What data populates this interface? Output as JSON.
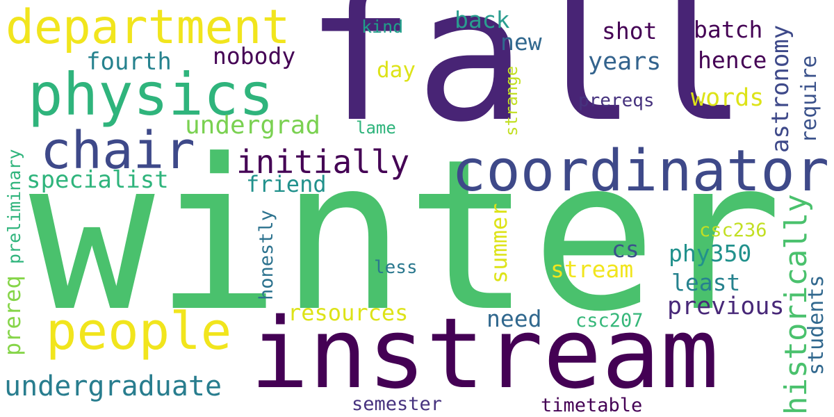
{
  "words": [
    {
      "text": "winter",
      "color": "#4ac16d"
    },
    {
      "text": "fall",
      "color": "#482475"
    },
    {
      "text": "instream",
      "color": "#440154"
    },
    {
      "text": "coordinator",
      "color": "#3e4989"
    },
    {
      "text": "physics",
      "color": "#2fb47c"
    },
    {
      "text": "department",
      "color": "#f1e51d"
    },
    {
      "text": "chair",
      "color": "#3e4989"
    },
    {
      "text": "people",
      "color": "#f1e51d"
    },
    {
      "text": "undergraduate",
      "color": "#287d8e"
    },
    {
      "text": "initially",
      "color": "#440154"
    },
    {
      "text": "historically",
      "color": "#4ac16d"
    },
    {
      "text": "astronomy",
      "color": "#3e4989"
    },
    {
      "text": "undergrad",
      "color": "#7ad151"
    },
    {
      "text": "specialist",
      "color": "#2fb47c"
    },
    {
      "text": "fourth",
      "color": "#26828e"
    },
    {
      "text": "nobody",
      "color": "#440154"
    },
    {
      "text": "back",
      "color": "#2a9d8f"
    },
    {
      "text": "new",
      "color": "#31688e"
    },
    {
      "text": "shot",
      "color": "#440154"
    },
    {
      "text": "batch",
      "color": "#440154"
    },
    {
      "text": "hence",
      "color": "#440154"
    },
    {
      "text": "years",
      "color": "#33638d"
    },
    {
      "text": "words",
      "color": "#dde318"
    },
    {
      "text": "day",
      "color": "#dde318"
    },
    {
      "text": "kind",
      "color": "#1f9e89"
    },
    {
      "text": "prereqs",
      "color": "#46327e"
    },
    {
      "text": "lame",
      "color": "#2fb47c"
    },
    {
      "text": "strange",
      "color": "#c2df23"
    },
    {
      "text": "require",
      "color": "#3b528b"
    },
    {
      "text": "friend",
      "color": "#21918c"
    },
    {
      "text": "summer",
      "color": "#dde318"
    },
    {
      "text": "stream",
      "color": "#f1e51d"
    },
    {
      "text": "cs",
      "color": "#3b528b"
    },
    {
      "text": "phy350",
      "color": "#21918c"
    },
    {
      "text": "csc236",
      "color": "#c2df23"
    },
    {
      "text": "least",
      "color": "#26828e"
    },
    {
      "text": "previous",
      "color": "#482878"
    },
    {
      "text": "students",
      "color": "#31688e"
    },
    {
      "text": "resources",
      "color": "#dde318"
    },
    {
      "text": "need",
      "color": "#31688e"
    },
    {
      "text": "csc207",
      "color": "#35b779"
    },
    {
      "text": "less",
      "color": "#2a788e"
    },
    {
      "text": "honestly",
      "color": "#2c728e"
    },
    {
      "text": "preliminary",
      "color": "#2fb47c"
    },
    {
      "text": "prereq",
      "color": "#86d549"
    },
    {
      "text": "semester",
      "color": "#46327e"
    },
    {
      "text": "timetable",
      "color": "#440154"
    }
  ]
}
